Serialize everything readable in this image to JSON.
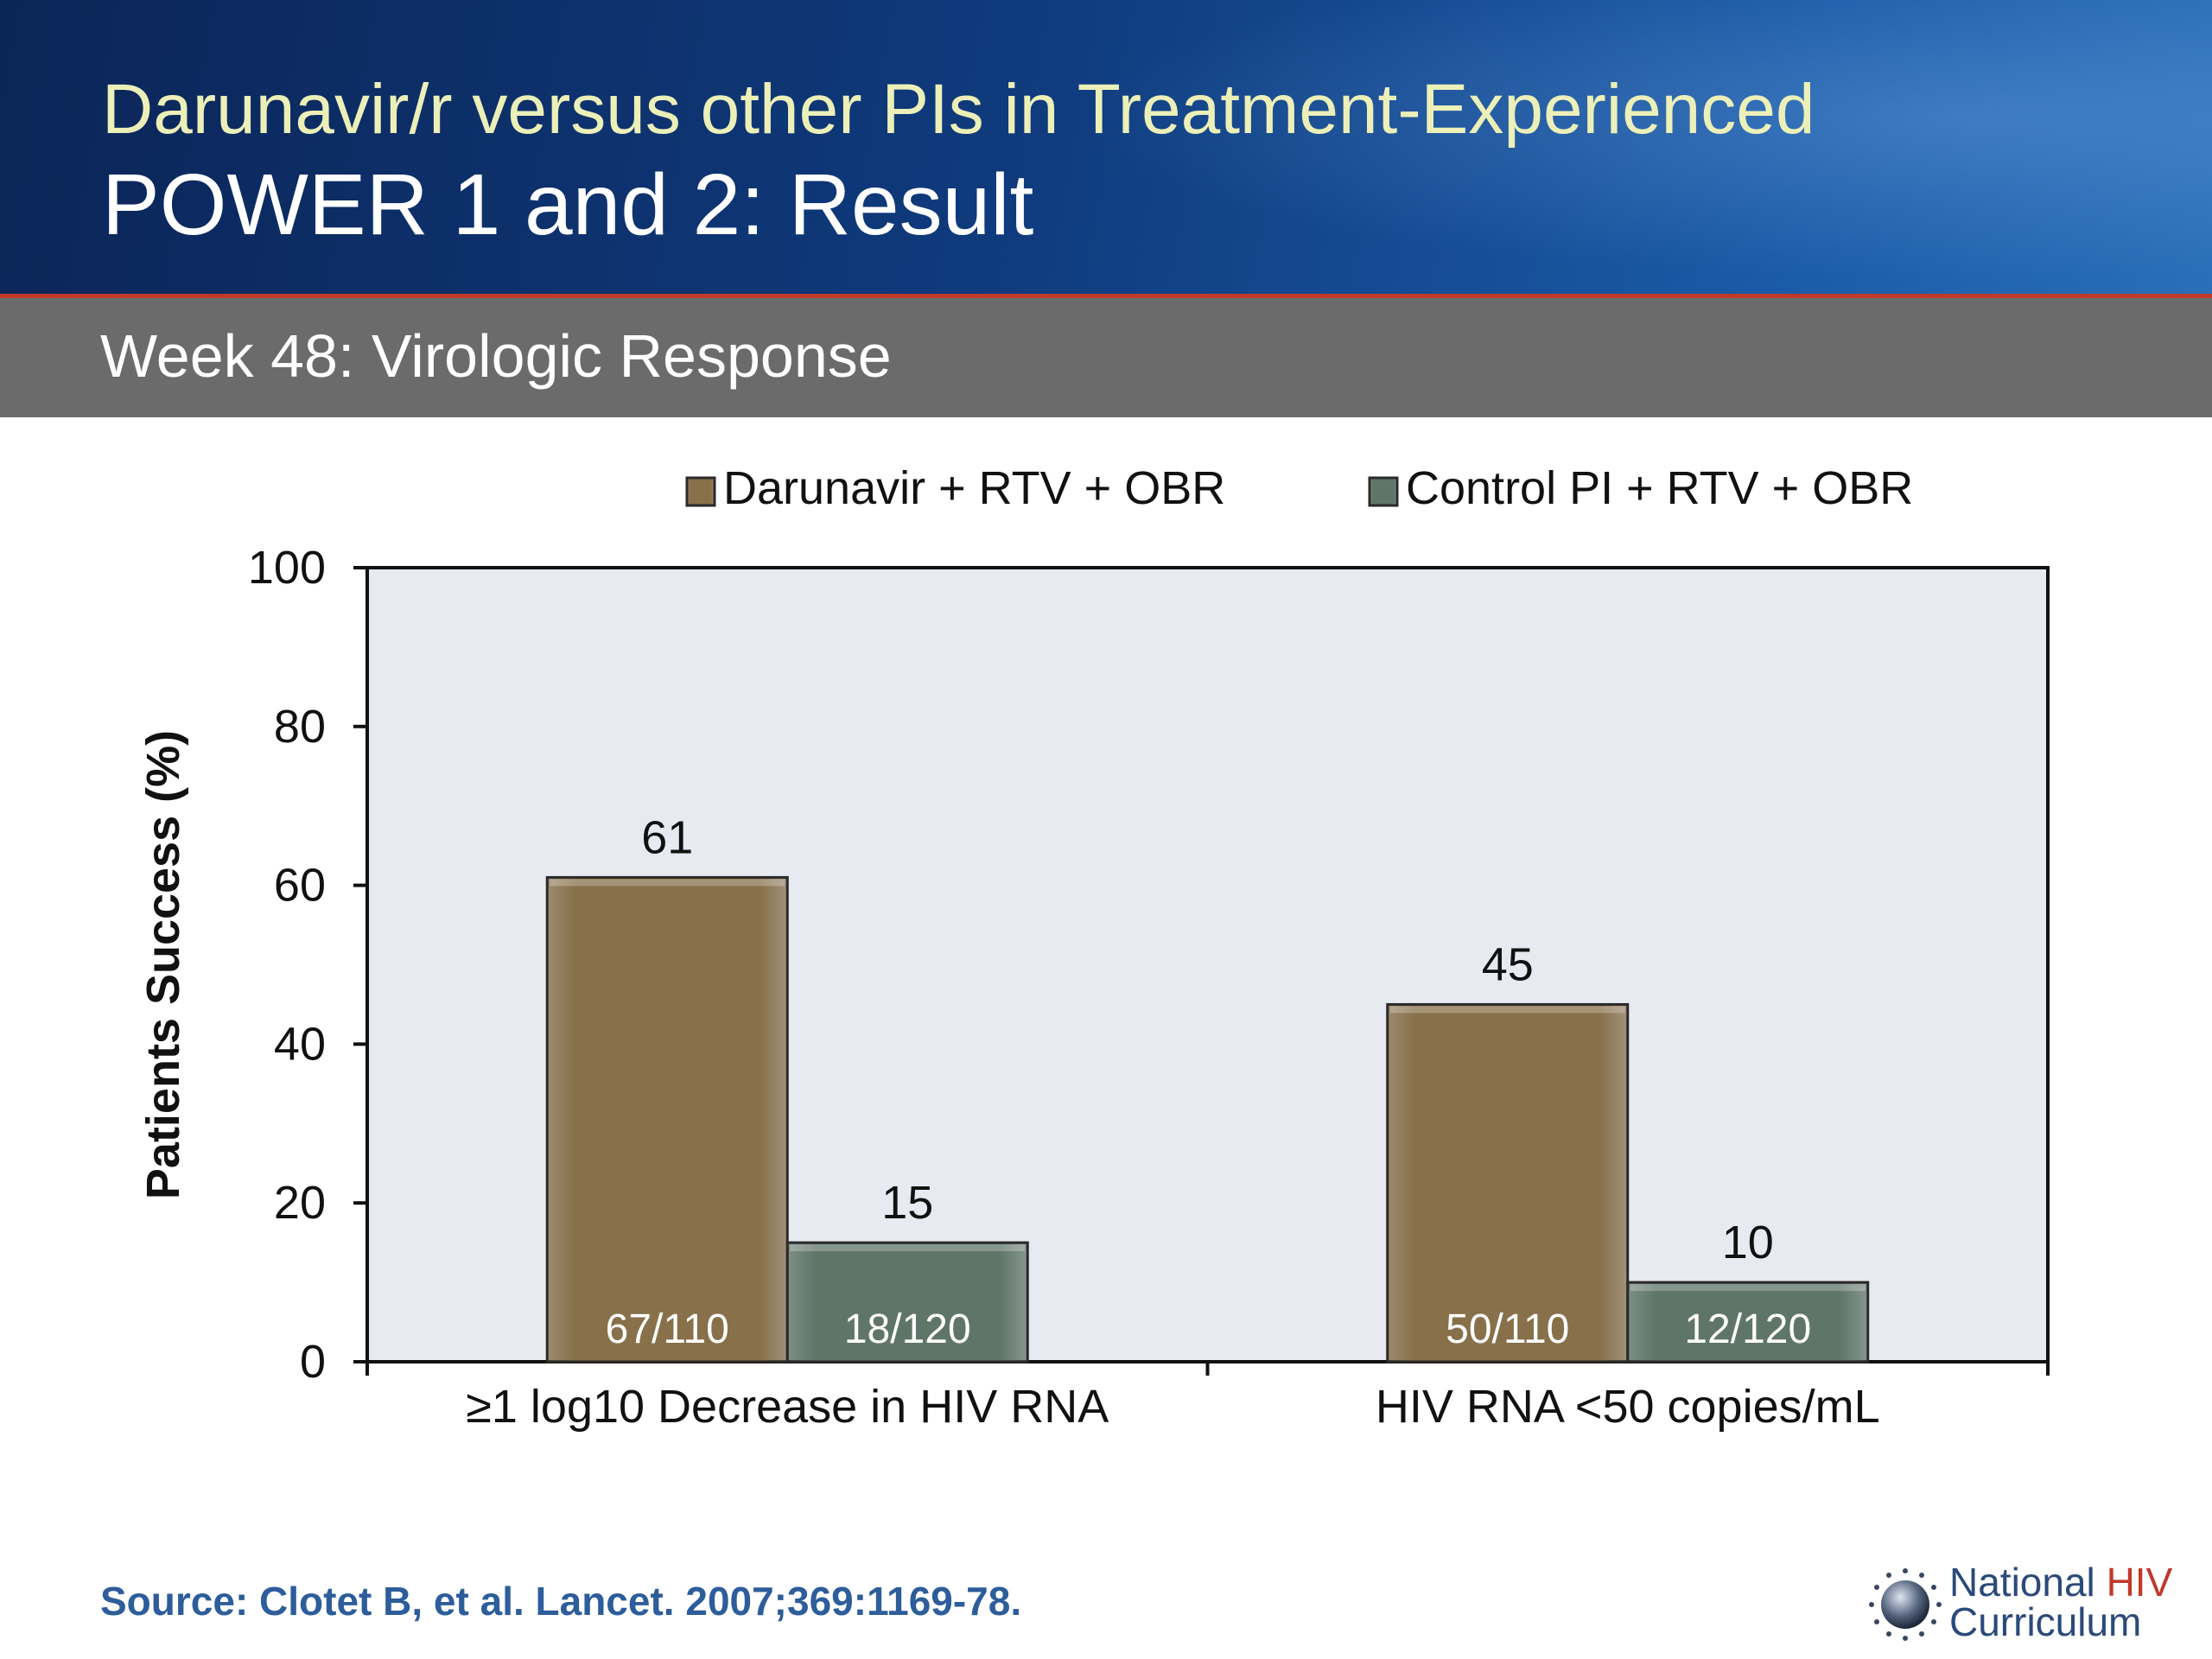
{
  "header": {
    "title_line1": "Darunavir/r versus other PIs in Treatment-Experienced",
    "title_line2": "POWER 1 and 2: Result"
  },
  "subheader": {
    "text": "Week 48: Virologic Response"
  },
  "chart_data": {
    "type": "bar",
    "ylabel": "Patients Success (%)",
    "ylim": [
      0,
      100
    ],
    "yticks": [
      0,
      20,
      40,
      60,
      80,
      100
    ],
    "categories": [
      "≥1 log10 Decrease in HIV RNA",
      "HIV RNA <50 copies/mL"
    ],
    "series": [
      {
        "name": "Darunavir + RTV + OBR",
        "values": [
          61,
          45
        ],
        "inner_labels": [
          "67/110",
          "50/110"
        ],
        "color": "#87704a"
      },
      {
        "name": "Control PI + RTV + OBR",
        "values": [
          15,
          10
        ],
        "inner_labels": [
          "18/120",
          "12/120"
        ],
        "color": "#5f7568"
      }
    ],
    "legend_position": "top",
    "grid": false,
    "plot_background": "#e8eaf1"
  },
  "footer": {
    "source": "Source: Clotet B, et al. Lancet. 2007;369:1169-78.",
    "logo_word1": "National",
    "logo_word2": "HIV",
    "logo_word3": "Curriculum"
  },
  "colors": {
    "title_yellow": "#ecf0b8",
    "source_blue": "#2d5d9a",
    "accent_red": "#c0392b"
  }
}
